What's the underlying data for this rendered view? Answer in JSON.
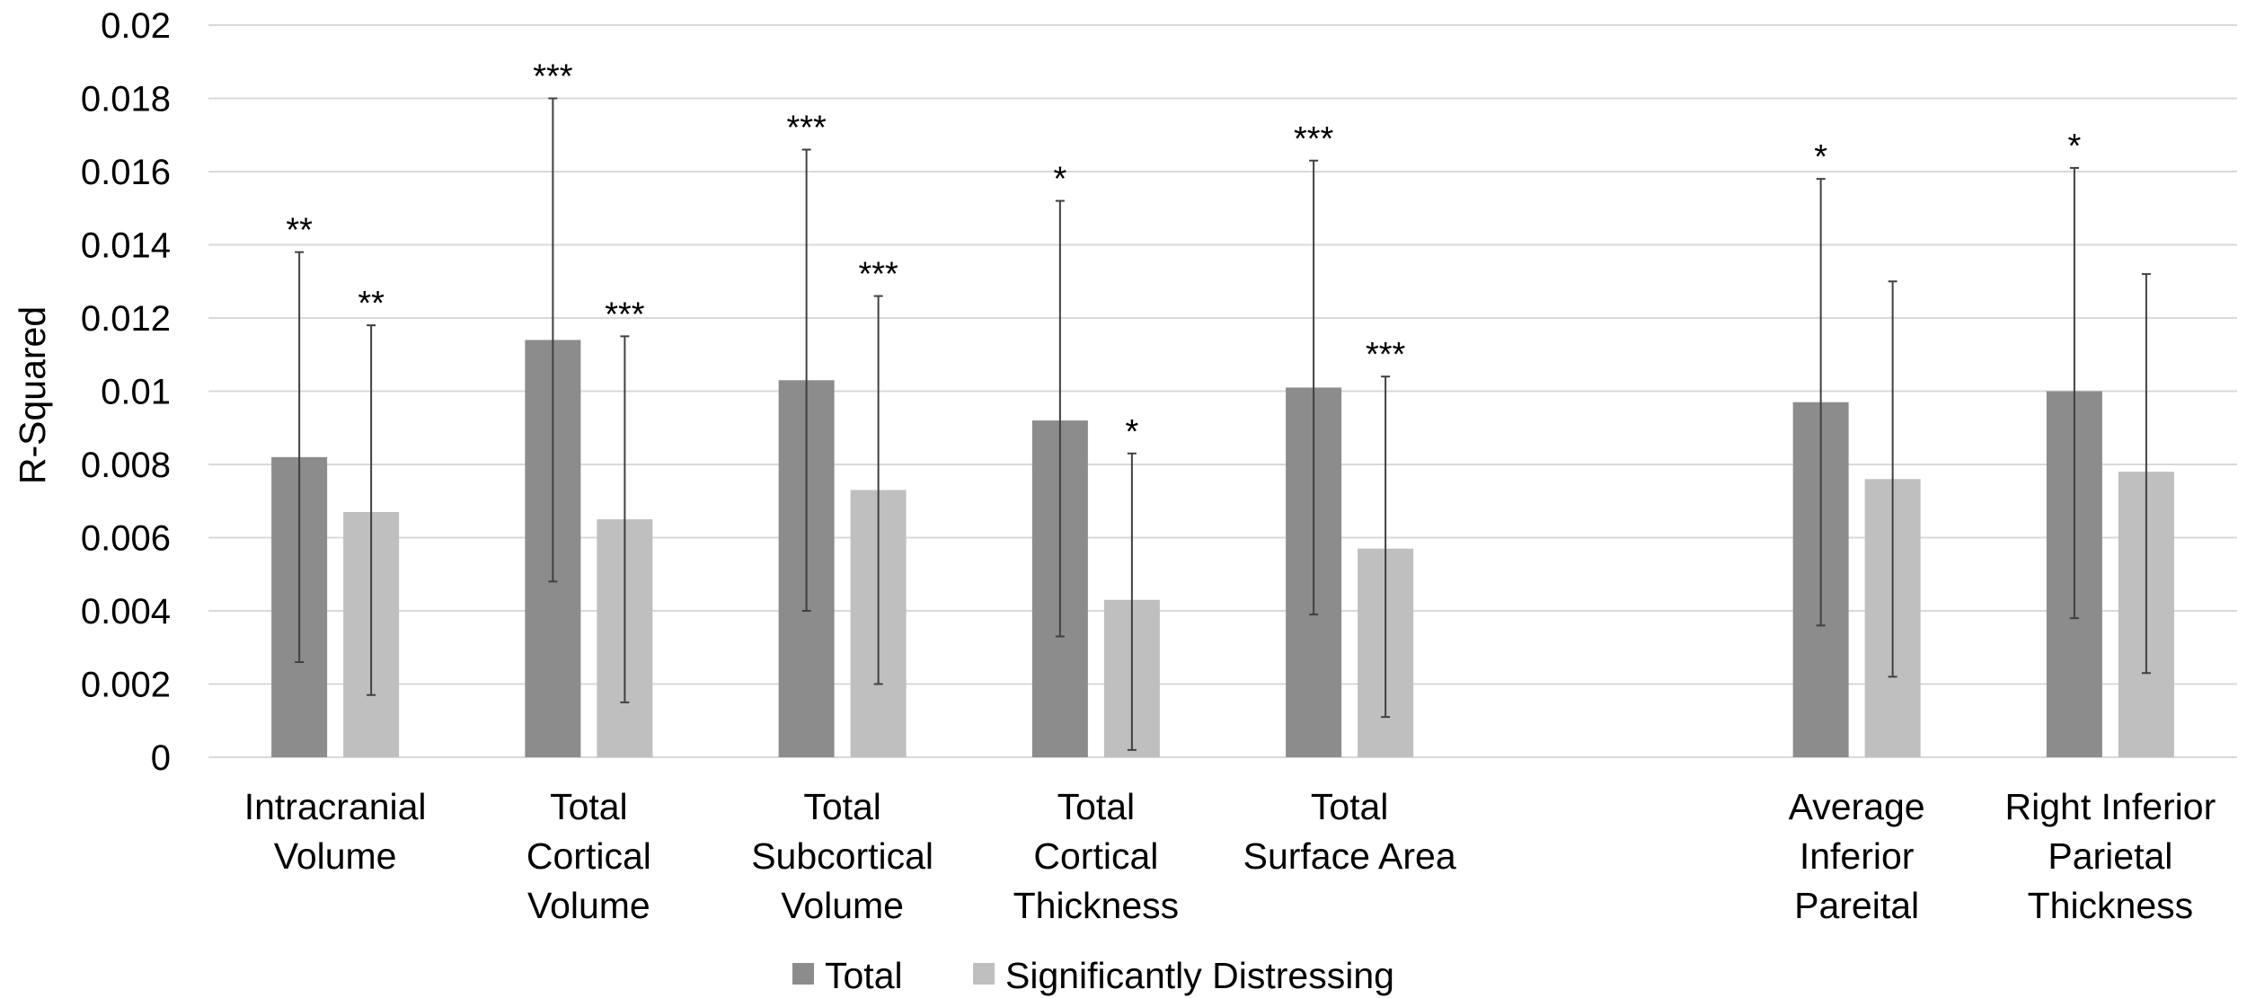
{
  "chart_data": {
    "type": "bar",
    "ylabel": "R-Squared",
    "xlabel": "",
    "ylim": [
      0,
      0.02
    ],
    "yticks": [
      "0",
      "0.002",
      "0.004",
      "0.006",
      "0.008",
      "0.01",
      "0.012",
      "0.014",
      "0.016",
      "0.018",
      "0.02"
    ],
    "grid": true,
    "legend_position": "bottom",
    "categories": [
      [
        "Intracranial",
        "Volume"
      ],
      [
        "Total",
        "Cortical",
        "Volume"
      ],
      [
        "Total",
        "Subcortical",
        "Volume"
      ],
      [
        "Total",
        "Cortical",
        "Thickness"
      ],
      [
        "Total",
        "Surface Area"
      ],
      [],
      [
        "Average",
        "Inferior",
        "Pareital"
      ],
      [
        "Right Inferior",
        "Parietal",
        "Thickness"
      ]
    ],
    "series": [
      {
        "name": "Total",
        "color": "#8c8c8c",
        "values": [
          0.0082,
          0.0114,
          0.0103,
          0.0092,
          0.0101,
          null,
          0.0097,
          0.01
        ],
        "err_low": [
          0.0026,
          0.0048,
          0.004,
          0.0033,
          0.0039,
          null,
          0.0036,
          0.0038
        ],
        "err_high": [
          0.0138,
          0.018,
          0.0166,
          0.0152,
          0.0163,
          null,
          0.0158,
          0.0161
        ],
        "significance": [
          "**",
          "***",
          "***",
          "*",
          "***",
          "",
          "*",
          "*"
        ]
      },
      {
        "name": "Significantly Distressing",
        "color": "#bfbfbf",
        "values": [
          0.0067,
          0.0065,
          0.0073,
          0.0043,
          0.0057,
          null,
          0.0076,
          0.0078
        ],
        "err_low": [
          0.0017,
          0.0015,
          0.002,
          0.0002,
          0.0011,
          null,
          0.0022,
          0.0023
        ],
        "err_high": [
          0.0118,
          0.0115,
          0.0126,
          0.0083,
          0.0104,
          null,
          0.013,
          0.0132
        ],
        "significance": [
          "**",
          "***",
          "***",
          "*",
          "***",
          "",
          "",
          ""
        ]
      }
    ]
  }
}
